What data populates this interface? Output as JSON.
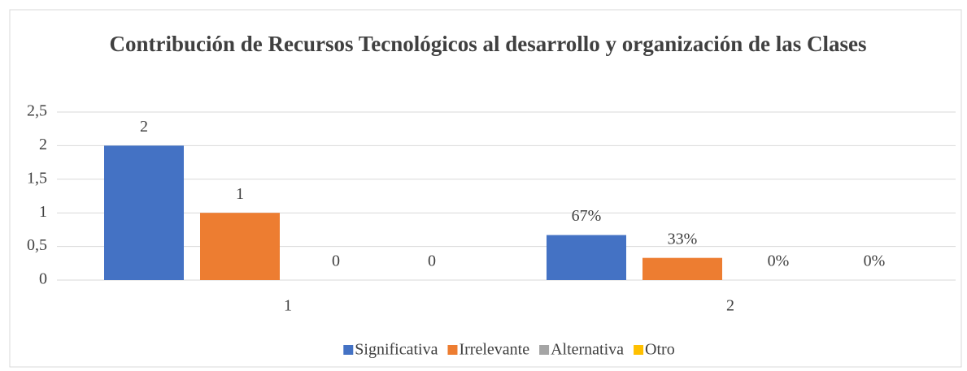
{
  "chart_data": {
    "type": "bar",
    "title": "Contribución de Recursos Tecnológicos al desarrollo y organización de las Clases",
    "categories": [
      "1",
      "2"
    ],
    "series": [
      {
        "name": "Significativa",
        "color": "#4472c4",
        "values": [
          2,
          0.67
        ],
        "value_labels": [
          "2",
          "67%"
        ]
      },
      {
        "name": "Irrelevante",
        "color": "#ed7d31",
        "values": [
          1,
          0.33
        ],
        "value_labels": [
          "1",
          "33%"
        ]
      },
      {
        "name": "Alternativa",
        "color": "#a5a5a5",
        "values": [
          0,
          0
        ],
        "value_labels": [
          "0",
          "0%"
        ]
      },
      {
        "name": "Otro",
        "color": "#ffc000",
        "values": [
          0,
          0
        ],
        "value_labels": [
          "0",
          "0%"
        ]
      }
    ],
    "ylim": [
      0,
      2.5
    ],
    "yticks": [
      0,
      {
        "value": 0.5,
        "label": "0,5"
      },
      1,
      {
        "value": 1.5,
        "label": "1,5"
      },
      2,
      {
        "value": 2.5,
        "label": "2,5"
      }
    ],
    "grid": true,
    "legend": "bottom"
  }
}
